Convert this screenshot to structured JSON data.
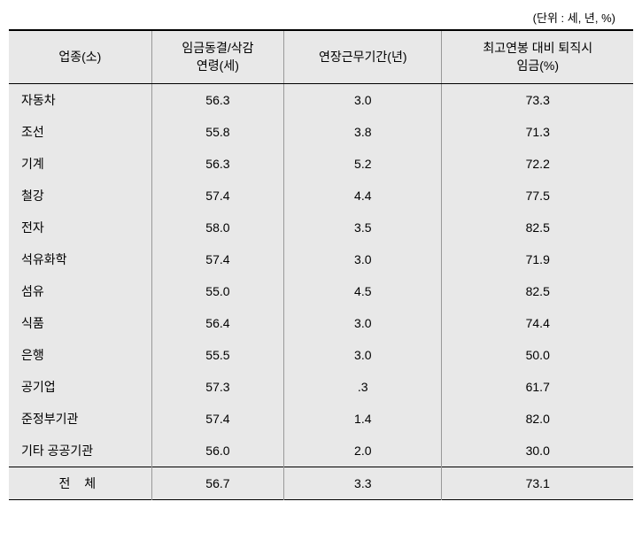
{
  "unit_label": "(단위 : 세, 년, %)",
  "table": {
    "columns": [
      "업종(소)",
      "임금동결/삭감\n연령(세)",
      "연장근무기간(년)",
      "최고연봉 대비 퇴직시\n임금(%)"
    ],
    "rows": [
      {
        "industry": "자동차",
        "age": "56.3",
        "extension": "3.0",
        "wage_pct": "73.3"
      },
      {
        "industry": "조선",
        "age": "55.8",
        "extension": "3.8",
        "wage_pct": "71.3"
      },
      {
        "industry": "기계",
        "age": "56.3",
        "extension": "5.2",
        "wage_pct": "72.2"
      },
      {
        "industry": "철강",
        "age": "57.4",
        "extension": "4.4",
        "wage_pct": "77.5"
      },
      {
        "industry": "전자",
        "age": "58.0",
        "extension": "3.5",
        "wage_pct": "82.5"
      },
      {
        "industry": "석유화학",
        "age": "57.4",
        "extension": "3.0",
        "wage_pct": "71.9"
      },
      {
        "industry": "섬유",
        "age": "55.0",
        "extension": "4.5",
        "wage_pct": "82.5"
      },
      {
        "industry": "식품",
        "age": "56.4",
        "extension": "3.0",
        "wage_pct": "74.4"
      },
      {
        "industry": "은행",
        "age": "55.5",
        "extension": "3.0",
        "wage_pct": "50.0"
      },
      {
        "industry": "공기업",
        "age": "57.3",
        "extension": ".3",
        "wage_pct": "61.7"
      },
      {
        "industry": "준정부기관",
        "age": "57.4",
        "extension": "1.4",
        "wage_pct": "82.0"
      },
      {
        "industry": "기타 공공기관",
        "age": "56.0",
        "extension": "2.0",
        "wage_pct": "30.0"
      }
    ],
    "total": {
      "industry": "전 체",
      "age": "56.7",
      "extension": "3.3",
      "wage_pct": "73.1"
    },
    "header_bg": "#e8e8e8",
    "cell_bg": "#e8e8e8",
    "border_color": "#999999",
    "strong_border": "#000000",
    "font_size": 14
  }
}
